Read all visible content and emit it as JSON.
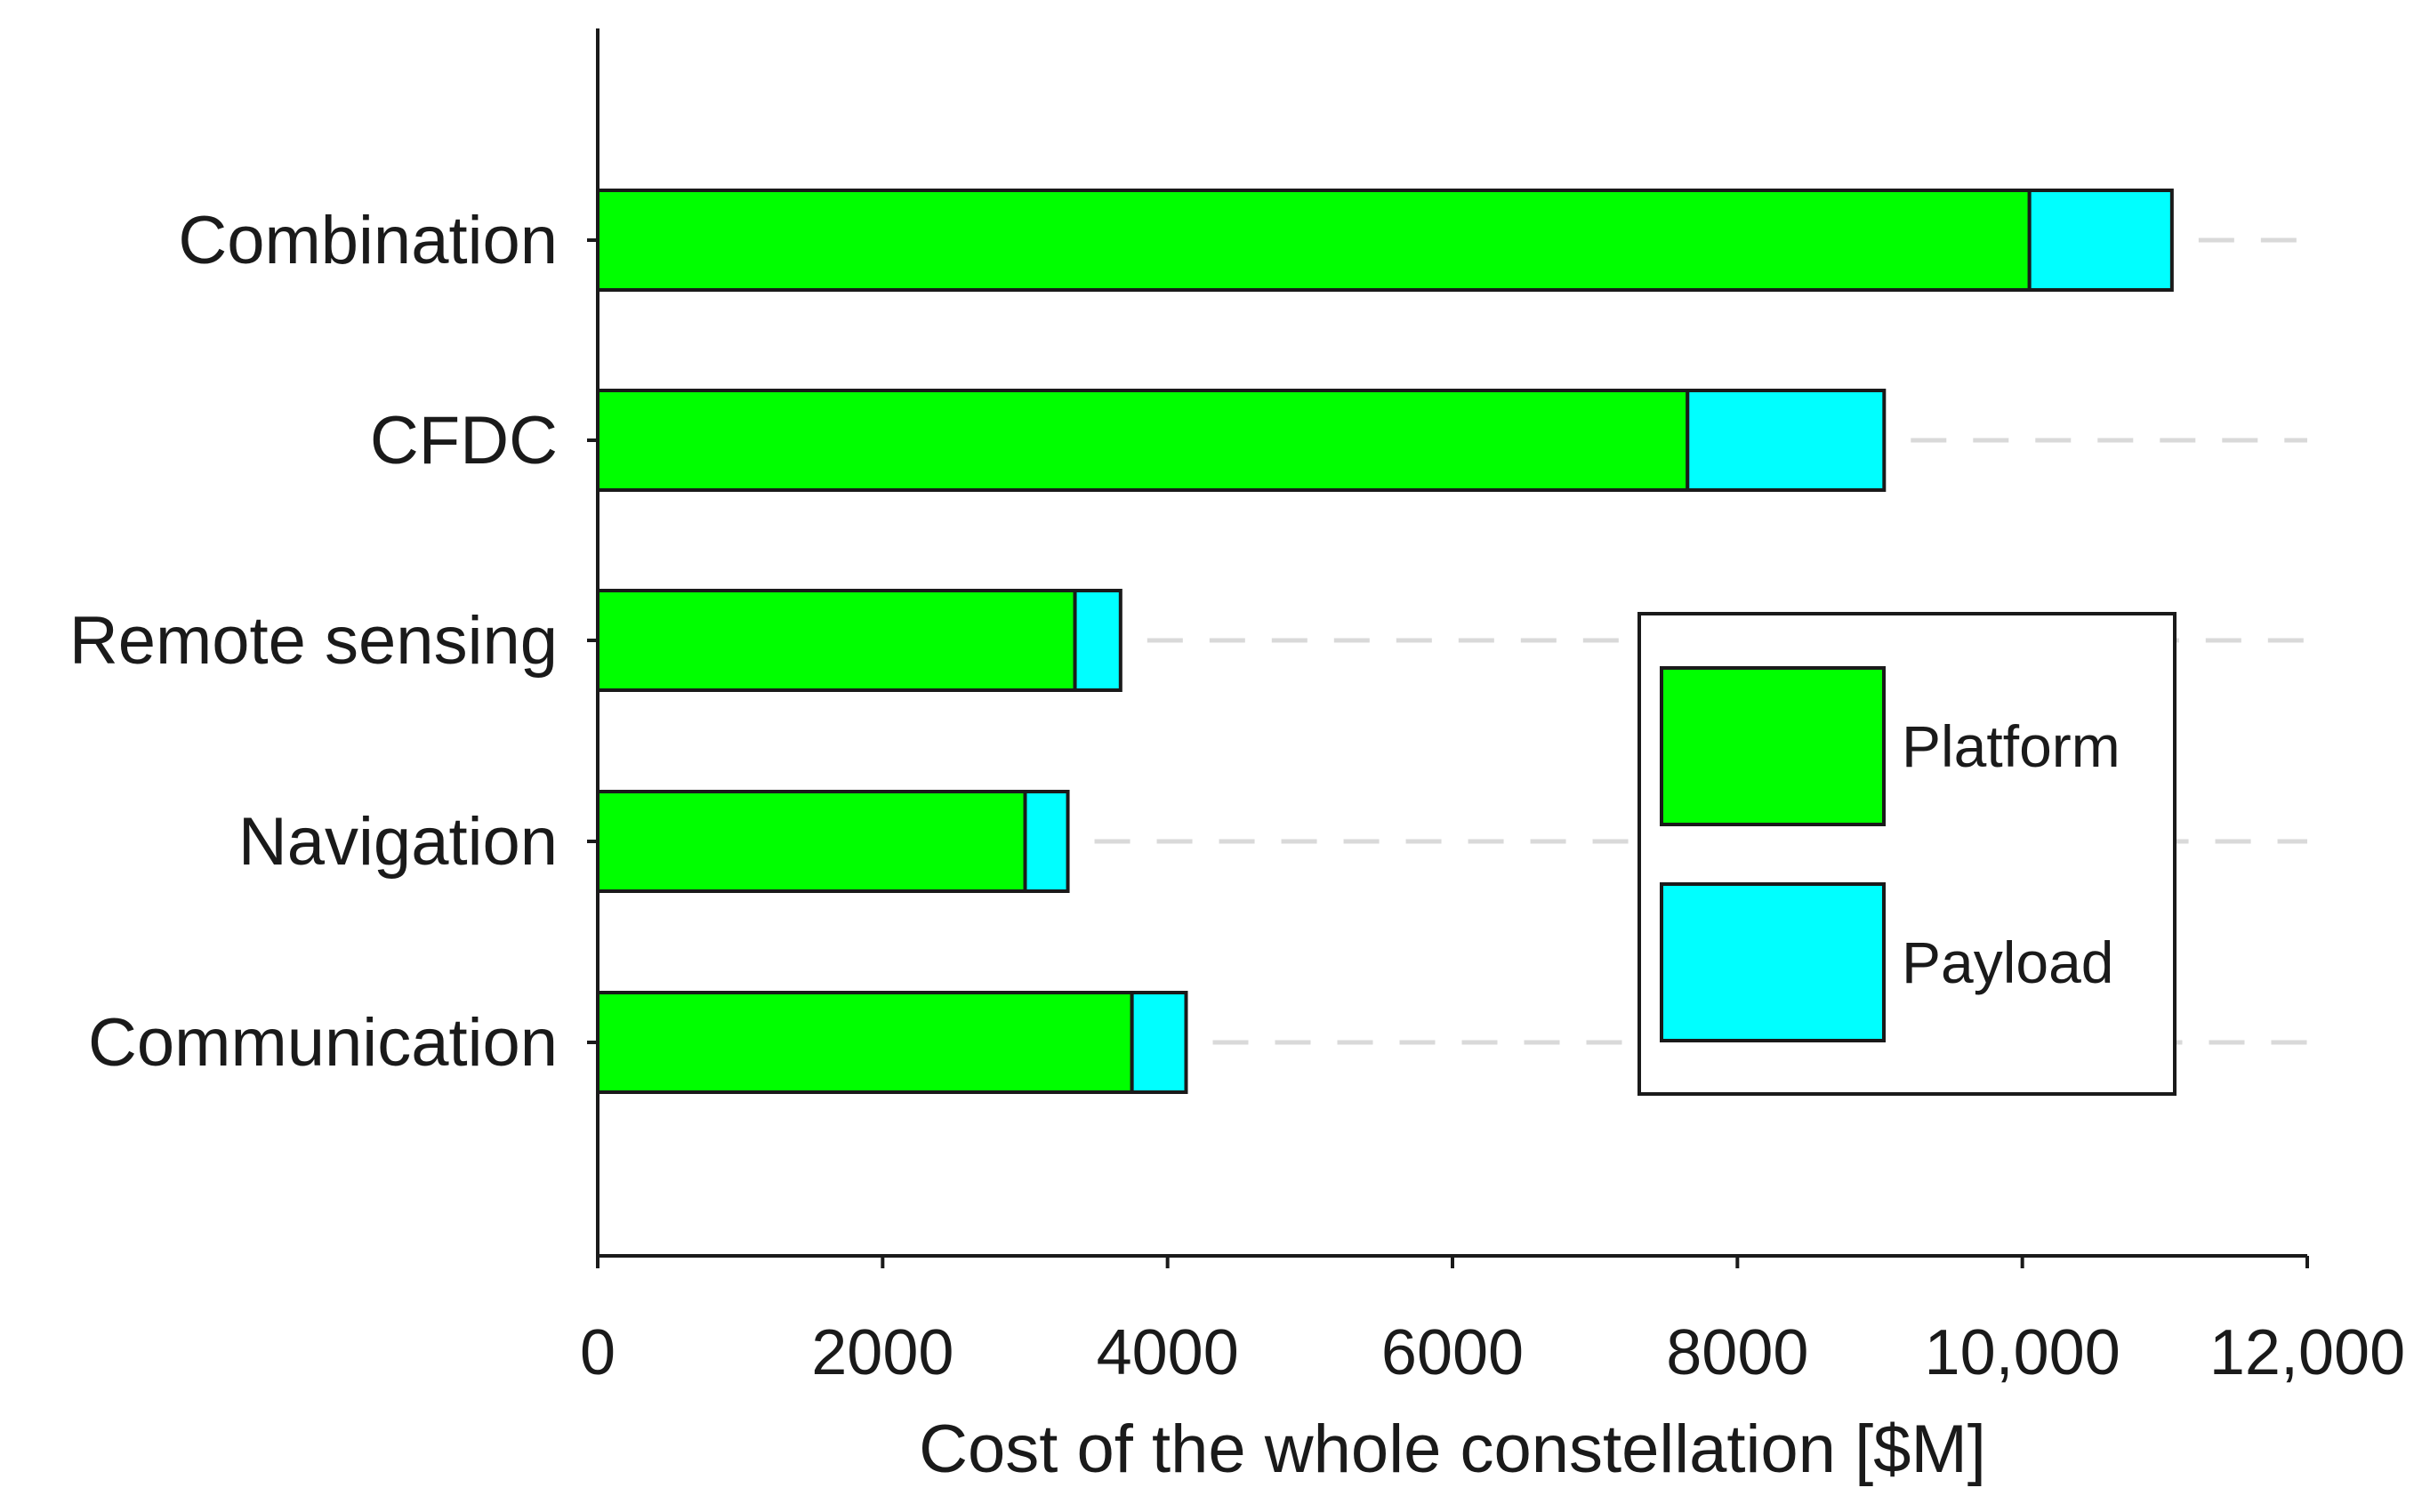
{
  "chart_data": {
    "type": "bar",
    "orientation": "horizontal",
    "stacked": true,
    "title": "",
    "xlabel": "Cost of the whole constellation [$M]",
    "ylabel": "",
    "xlim": [
      0,
      12000
    ],
    "xticks": [
      0,
      2000,
      4000,
      6000,
      8000,
      10000,
      12000
    ],
    "xtick_labels": [
      "0",
      "2000",
      "4000",
      "6000",
      "8000",
      "10,000",
      "12,000"
    ],
    "categories": [
      "Combination",
      "CFDC",
      "Remote sensing",
      "Navigation",
      "Communication"
    ],
    "series": [
      {
        "name": "Platform",
        "color": "#00ff00",
        "values": [
          10050,
          7650,
          3350,
          3000,
          3750
        ]
      },
      {
        "name": "Payload",
        "color": "#00ffff",
        "values": [
          1000,
          1380,
          320,
          300,
          380
        ]
      }
    ],
    "grid": "dashed horizontal reference lines",
    "legend_position": "center-right"
  }
}
